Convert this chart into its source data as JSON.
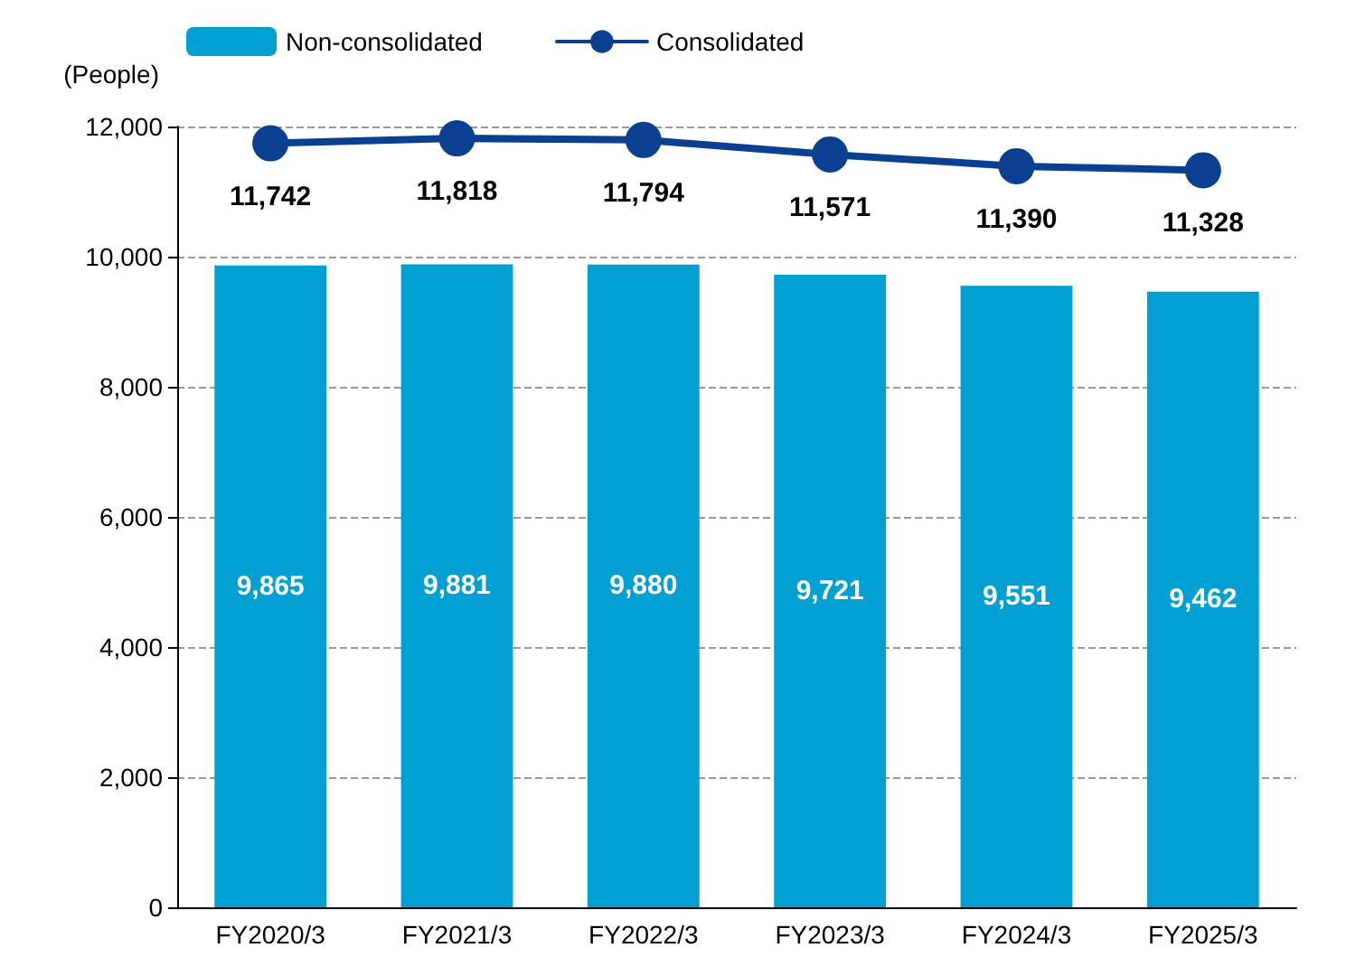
{
  "chart_data": {
    "type": "bar",
    "ylabel": "(People)",
    "categories": [
      "FY2020/3",
      "FY2021/3",
      "FY2022/3",
      "FY2023/3",
      "FY2024/3",
      "FY2025/3"
    ],
    "series": [
      {
        "name": "Non-consolidated",
        "color": "#00a0d2",
        "values": [
          9865,
          9881,
          9880,
          9721,
          9551,
          9462
        ],
        "value_labels": [
          "9,865",
          "9,881",
          "9,880",
          "9,721",
          "9,551",
          "9,462"
        ]
      },
      {
        "name": "Consolidated",
        "type": "line",
        "color": "#0b3f8f",
        "values": [
          11742,
          11818,
          11794,
          11571,
          11390,
          11328
        ],
        "value_labels": [
          "11,742",
          "11,818",
          "11,794",
          "11,571",
          "11,390",
          "11,328"
        ]
      }
    ],
    "ylim": [
      0,
      12000
    ],
    "yticks": [
      0,
      {
        "value": 2000,
        "label": "2,000"
      },
      {
        "value": 4000,
        "label": "4,000"
      },
      {
        "value": 6000,
        "label": "6,000"
      },
      {
        "value": 8000,
        "label": "8,000"
      },
      {
        "value": 10000,
        "label": "10,000"
      },
      {
        "value": 12000,
        "label": "12,000"
      }
    ],
    "grid": "y",
    "legend": "top left",
    "marker": "circle",
    "line_style": "solid"
  }
}
